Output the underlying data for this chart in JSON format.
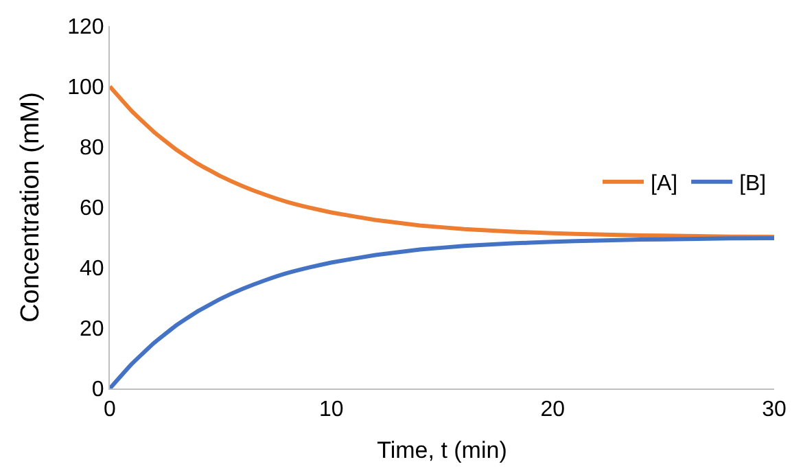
{
  "chart_data": {
    "type": "line",
    "xlabel": "Time, t (min)",
    "ylabel": "Concentration (mM)",
    "x": [
      0,
      1,
      2,
      3,
      4,
      5,
      6,
      7,
      8,
      9,
      10,
      12,
      14,
      16,
      18,
      20,
      22,
      24,
      26,
      28,
      30
    ],
    "series": [
      {
        "name": "[A]",
        "color": "#ed7d31",
        "values": [
          100,
          91.8,
          84.9,
          79.1,
          74.3,
          70.3,
          67.0,
          64.2,
          61.8,
          59.9,
          58.3,
          55.8,
          54.0,
          52.8,
          52.0,
          51.4,
          51.0,
          50.7,
          50.5,
          50.3,
          50.2
        ]
      },
      {
        "name": "[B]",
        "color": "#4472c4",
        "values": [
          0,
          8.2,
          15.1,
          20.9,
          25.7,
          29.7,
          33.0,
          35.8,
          38.2,
          40.1,
          41.7,
          44.2,
          46.0,
          47.2,
          48.0,
          48.6,
          49.0,
          49.3,
          49.5,
          49.7,
          49.8
        ]
      }
    ],
    "xlim": [
      0,
      30
    ],
    "xticks": [
      0,
      10,
      20,
      30
    ],
    "ylim": [
      0,
      120
    ],
    "yticks": [
      0,
      20,
      40,
      60,
      80,
      100,
      120
    ],
    "grid": false,
    "legend": "right",
    "marker": "none",
    "line_style": "solid"
  }
}
